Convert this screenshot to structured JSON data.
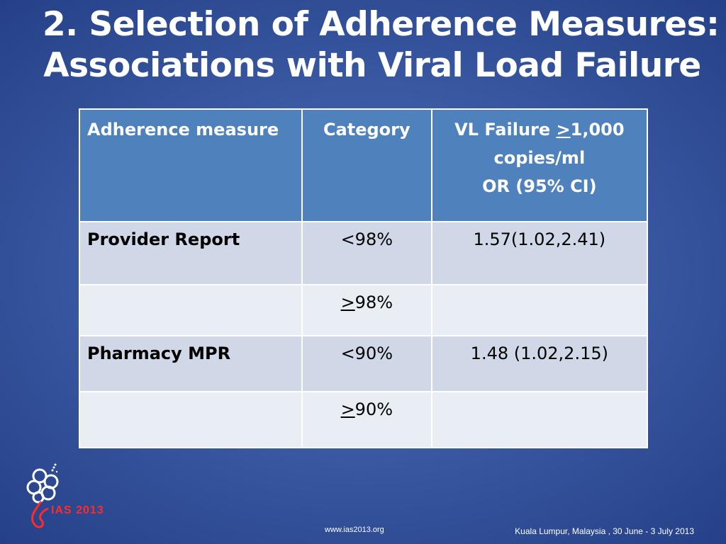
{
  "title": {
    "line1": "2. Selection of Adherence Measures:",
    "line2": "Associations with Viral Load Failure"
  },
  "table": {
    "headers": {
      "measure": "Adherence measure",
      "category": "Category",
      "vl_line1_prefix": "VL Failure ",
      "vl_line1_sym": ">",
      "vl_line1_suffix": "1,000",
      "vl_line2": "copies/ml",
      "vl_line3": "OR (95% CI)"
    },
    "rows": [
      {
        "measure": "Provider Report",
        "category_sym": "",
        "category": "<98%",
        "or": "1.57(1.02,2.41)"
      },
      {
        "measure": "",
        "category_sym": ">",
        "category": "98%",
        "or": ""
      },
      {
        "measure": "Pharmacy MPR",
        "category_sym": "",
        "category": "<90%",
        "or": "1.48 (1.02,2.15)"
      },
      {
        "measure": "",
        "category_sym": ">",
        "category": "90%",
        "or": ""
      }
    ]
  },
  "logo": {
    "text": "IAS 2013",
    "color": "#ff2a2a"
  },
  "footer": {
    "url": "www.ias2013.org",
    "venue": "Kuala Lumpur, Malaysia , 30 June - 3 July 2013"
  },
  "colors": {
    "header_fill": "#4f81bd",
    "row_fill_dark": "#d0d8e8",
    "row_fill_light": "#e9edf4",
    "background": "#3a5aa3"
  }
}
